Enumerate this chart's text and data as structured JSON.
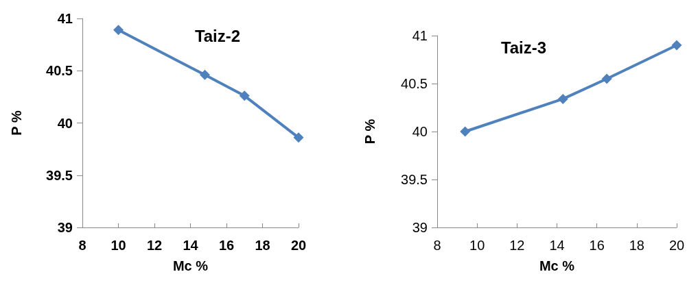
{
  "chart_data": [
    {
      "type": "line",
      "title": "Taiz-2",
      "xlabel": "Mc %",
      "ylabel": "P %",
      "x": [
        10,
        14.8,
        17,
        20
      ],
      "values": [
        40.89,
        40.46,
        40.26,
        39.86
      ],
      "color": "#4f81bd",
      "xlim": [
        8,
        20
      ],
      "xticks": [
        8,
        10,
        12,
        14,
        16,
        18,
        20
      ],
      "ylim": [
        39,
        41
      ],
      "yticks": [
        39,
        39.5,
        40,
        40.5,
        41
      ],
      "marker": "diamond",
      "grid": false
    },
    {
      "type": "line",
      "title": "Taiz-3",
      "xlabel": "Mc %",
      "ylabel": "P %",
      "x": [
        9.4,
        14.3,
        16.5,
        20
      ],
      "values": [
        40.0,
        40.34,
        40.55,
        40.9
      ],
      "color": "#4f81bd",
      "xlim": [
        8,
        20
      ],
      "xticks": [
        8,
        10,
        12,
        14,
        16,
        18,
        20
      ],
      "ylim": [
        39,
        41
      ],
      "yticks": [
        39,
        39.5,
        40,
        40.5,
        41
      ],
      "marker": "diamond",
      "grid": false
    }
  ]
}
